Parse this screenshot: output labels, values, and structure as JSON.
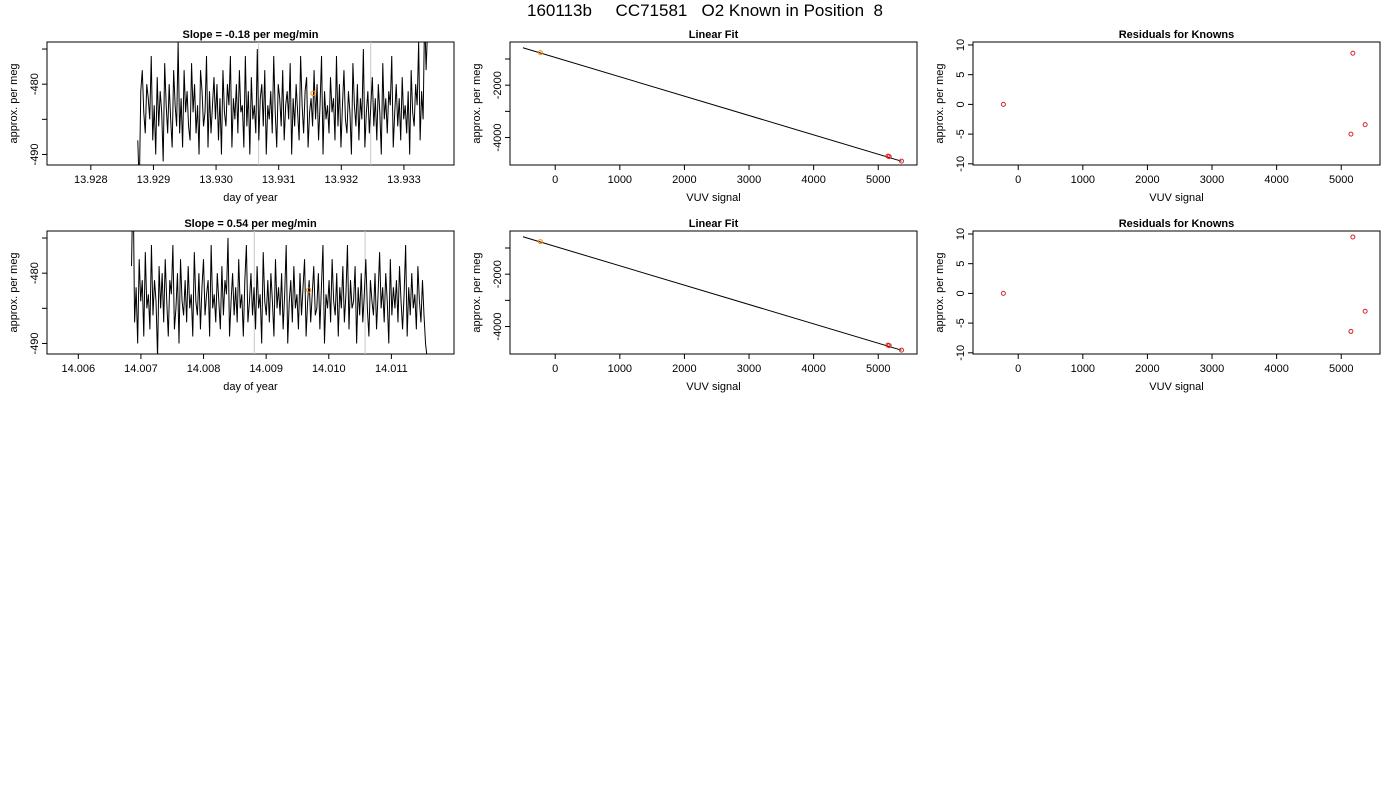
{
  "page_title": "160113b     CC71581   O2 Known in Position  8",
  "colors": {
    "trace": "#000000",
    "marker_known": "#ff8c00",
    "marker_residual": "#dd2222",
    "ref_line": "#c8c8c8",
    "axis": "#000000"
  },
  "chart_data": [
    {
      "id": "ts1",
      "type": "line",
      "title": "Slope =  -0.18  per meg/min",
      "xlabel": "day of year",
      "ylabel": "approx. per meg",
      "xlim": [
        13.9273,
        13.9338
      ],
      "ylim": [
        -491.5,
        -474
      ],
      "xticks": [
        13.928,
        13.929,
        13.93,
        13.931,
        13.932,
        13.933
      ],
      "xtick_labels": [
        "13.928",
        "13.929",
        "13.930",
        "13.931",
        "13.932",
        "13.933"
      ],
      "yticks": [
        -490,
        -485,
        -480,
        -475
      ],
      "ytick_labels": [
        "-490",
        "",
        "-480",
        ""
      ],
      "ref_lines_x": [
        13.93068,
        13.93247
      ],
      "marker": {
        "x": 13.93155,
        "y": -481.3
      },
      "trace": {
        "x_start": 13.92875,
        "x_end": 13.93345,
        "points": [
          -488,
          -495,
          -481,
          -478,
          -484,
          -487,
          -480,
          -482,
          -485,
          -476,
          -488,
          -483,
          -490,
          -479,
          -486,
          -481,
          -484,
          -491,
          -477,
          -483,
          -487,
          -480,
          -485,
          -489,
          -478,
          -483,
          -486,
          -474,
          -487,
          -482,
          -489,
          -478,
          -484,
          -481,
          -486,
          -488,
          -477,
          -484,
          -480,
          -487,
          -483,
          -490,
          -478,
          -481,
          -486,
          -484,
          -476,
          -489,
          -481,
          -487,
          -483,
          -479,
          -485,
          -480,
          -488,
          -482,
          -490,
          -478,
          -484,
          -486,
          -480,
          -483,
          -476,
          -489,
          -482,
          -485,
          -480,
          -487,
          -478,
          -484,
          -483,
          -489,
          -476,
          -486,
          -481,
          -490,
          -479,
          -485,
          -483,
          -487,
          -475,
          -488,
          -482,
          -480,
          -486,
          -478,
          -490,
          -483,
          -485,
          -481,
          -487,
          -476,
          -484,
          -489,
          -480,
          -482,
          -486,
          -478,
          -488,
          -483,
          -481,
          -485,
          -477,
          -490,
          -482,
          -486,
          -480,
          -484,
          -488,
          -476,
          -483,
          -487,
          -481,
          -479,
          -489,
          -484,
          -482,
          -486,
          -478,
          -485,
          -480,
          -488,
          -483,
          -476,
          -490,
          -481,
          -485,
          -483,
          -487,
          -479,
          -484,
          -482,
          -488,
          -476,
          -486,
          -480,
          -489,
          -483,
          -478,
          -485,
          -487,
          -481,
          -484,
          -490,
          -477,
          -483,
          -486,
          -480,
          -488,
          -482,
          -485,
          -475,
          -489,
          -484,
          -481,
          -487,
          -483,
          -479,
          -486,
          -482,
          -488,
          -480,
          -484,
          -490,
          -477,
          -485,
          -482,
          -487,
          -481,
          -483,
          -476,
          -489,
          -484,
          -480,
          -486,
          -482,
          -488,
          -479,
          -485,
          -483,
          -487,
          -481,
          -490,
          -478,
          -484,
          -486,
          -480,
          -483,
          -474,
          -488,
          -481,
          -485,
          -470,
          -478,
          -472,
          -468,
          -471,
          -465
        ]
      }
    },
    {
      "id": "fit1",
      "type": "scatter",
      "title": "Linear Fit",
      "xlabel": "VUV signal",
      "ylabel": "approx. per meg",
      "xlim": [
        -700,
        5600
      ],
      "ylim": [
        -5050,
        -350
      ],
      "xticks": [
        0,
        1000,
        2000,
        3000,
        4000,
        5000
      ],
      "xtick_labels": [
        "0",
        "1000",
        "2000",
        "3000",
        "4000",
        "5000"
      ],
      "yticks": [
        -4000,
        -3000,
        -2000,
        -1000
      ],
      "ytick_labels": [
        "-4000",
        "",
        "-2000",
        ""
      ],
      "line": {
        "x": [
          -500,
          5360
        ],
        "y": [
          -570,
          -4905
        ]
      },
      "points": [
        {
          "x": -230,
          "y": -755,
          "color": "orange"
        },
        {
          "x": 5150,
          "y": -4710,
          "color": "red"
        },
        {
          "x": 5170,
          "y": -4730,
          "color": "red"
        },
        {
          "x": 5360,
          "y": -4900,
          "color": "red"
        }
      ]
    },
    {
      "id": "res1",
      "type": "scatter",
      "title": "Residuals for Knowns",
      "xlabel": "VUV signal",
      "ylabel": "approx. per meg",
      "xlim": [
        -700,
        5600
      ],
      "ylim": [
        -10.2,
        10.5
      ],
      "xticks": [
        0,
        1000,
        2000,
        3000,
        4000,
        5000
      ],
      "xtick_labels": [
        "0",
        "1000",
        "2000",
        "3000",
        "4000",
        "5000"
      ],
      "yticks": [
        -10,
        -5,
        0,
        5,
        10
      ],
      "ytick_labels": [
        "-10",
        "-5",
        "0",
        "5",
        "10"
      ],
      "points": [
        {
          "x": -230,
          "y": 0,
          "color": "red"
        },
        {
          "x": 5180,
          "y": 8.6,
          "color": "red"
        },
        {
          "x": 5150,
          "y": -5.0,
          "color": "red"
        },
        {
          "x": 5370,
          "y": -3.4,
          "color": "red"
        }
      ]
    },
    {
      "id": "ts2",
      "type": "line",
      "title": "Slope =  0.54  per meg/min",
      "xlabel": "day of year",
      "ylabel": "approx. per meg",
      "xlim": [
        14.0055,
        14.012
      ],
      "ylim": [
        -491.5,
        -474
      ],
      "xticks": [
        14.006,
        14.007,
        14.008,
        14.009,
        14.01,
        14.011
      ],
      "xtick_labels": [
        "14.006",
        "14.007",
        "14.008",
        "14.009",
        "14.010",
        "14.011"
      ],
      "yticks": [
        -490,
        -485,
        -480,
        -475
      ],
      "ytick_labels": [
        "-490",
        "",
        "-480",
        ""
      ],
      "ref_lines_x": [
        14.00881,
        14.01058
      ],
      "marker": {
        "x": 14.00968,
        "y": -482.4
      },
      "trace": {
        "x_start": 14.00685,
        "x_end": 14.01157,
        "points": [
          -479,
          -466,
          -487,
          -482,
          -490,
          -478,
          -484,
          -481,
          -489,
          -477,
          -485,
          -483,
          -488,
          -476,
          -486,
          -481,
          -484,
          -492,
          -479,
          -485,
          -480,
          -487,
          -478,
          -484,
          -489,
          -481,
          -483,
          -476,
          -488,
          -485,
          -480,
          -490,
          -478,
          -484,
          -486,
          -481,
          -487,
          -479,
          -485,
          -483,
          -489,
          -477,
          -484,
          -486,
          -480,
          -488,
          -482,
          -478,
          -486,
          -483,
          -481,
          -489,
          -476,
          -485,
          -483,
          -487,
          -480,
          -484,
          -488,
          -479,
          -486,
          -481,
          -483,
          -475,
          -489,
          -484,
          -480,
          -486,
          -482,
          -487,
          -478,
          -485,
          -483,
          -489,
          -481,
          -476,
          -487,
          -484,
          -480,
          -486,
          -482,
          -488,
          -479,
          -485,
          -483,
          -490,
          -477,
          -484,
          -486,
          -481,
          -487,
          -480,
          -484,
          -489,
          -478,
          -485,
          -482,
          -486,
          -480,
          -488,
          -483,
          -476,
          -490,
          -484,
          -481,
          -487,
          -479,
          -485,
          -483,
          -488,
          -480,
          -486,
          -482,
          -478,
          -489,
          -484,
          -481,
          -487,
          -483,
          -479,
          -486,
          -485,
          -480,
          -488,
          -482,
          -476,
          -490,
          -483,
          -485,
          -481,
          -487,
          -478,
          -484,
          -486,
          -480,
          -489,
          -482,
          -485,
          -479,
          -487,
          -483,
          -476,
          -488,
          -481,
          -485,
          -484,
          -479,
          -490,
          -482,
          -486,
          -480,
          -487,
          -483,
          -478,
          -485,
          -489,
          -481,
          -484,
          -486,
          -480,
          -488,
          -483,
          -477,
          -485,
          -482,
          -487,
          -480,
          -484,
          -490,
          -478,
          -486,
          -482,
          -485,
          -481,
          -487,
          -479,
          -484,
          -488,
          -483,
          -476,
          -489,
          -482,
          -486,
          -480,
          -485,
          -483,
          -488,
          -479,
          -484,
          -487,
          -481,
          -486,
          -490,
          -492
        ]
      }
    },
    {
      "id": "fit2",
      "type": "scatter",
      "title": "Linear Fit",
      "xlabel": "VUV signal",
      "ylabel": "approx. per meg",
      "xlim": [
        -700,
        5600
      ],
      "ylim": [
        -5050,
        -350
      ],
      "xticks": [
        0,
        1000,
        2000,
        3000,
        4000,
        5000
      ],
      "xtick_labels": [
        "0",
        "1000",
        "2000",
        "3000",
        "4000",
        "5000"
      ],
      "yticks": [
        -4000,
        -3000,
        -2000,
        -1000
      ],
      "ytick_labels": [
        "-4000",
        "",
        "-2000",
        ""
      ],
      "line": {
        "x": [
          -500,
          5360
        ],
        "y": [
          -570,
          -4905
        ]
      },
      "points": [
        {
          "x": -230,
          "y": -755,
          "color": "orange"
        },
        {
          "x": 5150,
          "y": -4710,
          "color": "red"
        },
        {
          "x": 5170,
          "y": -4730,
          "color": "red"
        },
        {
          "x": 5360,
          "y": -4900,
          "color": "red"
        }
      ]
    },
    {
      "id": "res2",
      "type": "scatter",
      "title": "Residuals for Knowns",
      "xlabel": "VUV signal",
      "ylabel": "approx. per meg",
      "xlim": [
        -700,
        5600
      ],
      "ylim": [
        -10.2,
        10.5
      ],
      "xticks": [
        0,
        1000,
        2000,
        3000,
        4000,
        5000
      ],
      "xtick_labels": [
        "0",
        "1000",
        "2000",
        "3000",
        "4000",
        "5000"
      ],
      "yticks": [
        -10,
        -5,
        0,
        5,
        10
      ],
      "ytick_labels": [
        "-10",
        "-5",
        "0",
        "5",
        "10"
      ],
      "points": [
        {
          "x": -230,
          "y": 0,
          "color": "red"
        },
        {
          "x": 5180,
          "y": 9.5,
          "color": "red"
        },
        {
          "x": 5150,
          "y": -6.4,
          "color": "red"
        },
        {
          "x": 5370,
          "y": -3.0,
          "color": "red"
        }
      ]
    }
  ]
}
